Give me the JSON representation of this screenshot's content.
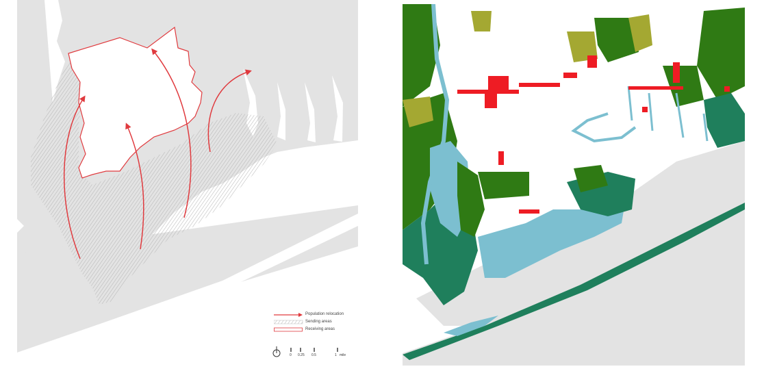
{
  "legend": {
    "items": [
      {
        "label": "Population relocation",
        "symbol": "arrow-icon",
        "color": "#e03a3e"
      },
      {
        "label": "Sending areas",
        "symbol": "hatch-swatch",
        "color": "#9a9a9a"
      },
      {
        "label": "Receiving areas",
        "symbol": "outline-swatch",
        "color": "#e03a3e"
      }
    ]
  },
  "scale_bar": {
    "ticks": [
      "0",
      "0.25",
      "0.5",
      "1"
    ],
    "unit": "mile",
    "north_arrow": "north-arrow-icon"
  },
  "colors": {
    "land": "#e3e3e3",
    "relocation": "#e03a3e",
    "forest": "#2f7a14",
    "shrub": "#a4a832",
    "wetland": "#1f7f5c",
    "water_marsh": "#7cbfd0",
    "developed": "#ee1c24"
  }
}
